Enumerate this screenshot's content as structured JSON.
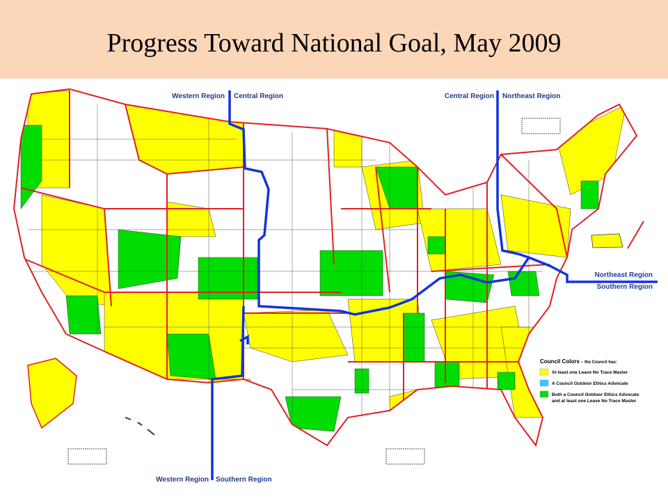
{
  "header": {
    "title": "Progress Toward National Goal, May 2009"
  },
  "regions": {
    "top_left": [
      "Western Region",
      "Central Region"
    ],
    "top_right": [
      "Central Region",
      "Northeast Region"
    ],
    "right": [
      "Northeast Region",
      "Southern Region"
    ],
    "bottom": [
      "Western Region",
      "Southern Region"
    ]
  },
  "legend": {
    "title": "Council Colors - ",
    "subtitle": "the Council has:",
    "items": [
      {
        "color": "#ffff00",
        "label_lines": [
          "At least one Leave No Trace Master"
        ]
      },
      {
        "color": "#33ccff",
        "label_lines": [
          "A Council Outdoor Ethics Advocate"
        ]
      },
      {
        "color": "#00dd00",
        "label_lines": [
          "Both a Council Outdoor Ethics Advocate",
          "and at least one Leave No Trace Master"
        ]
      }
    ]
  }
}
